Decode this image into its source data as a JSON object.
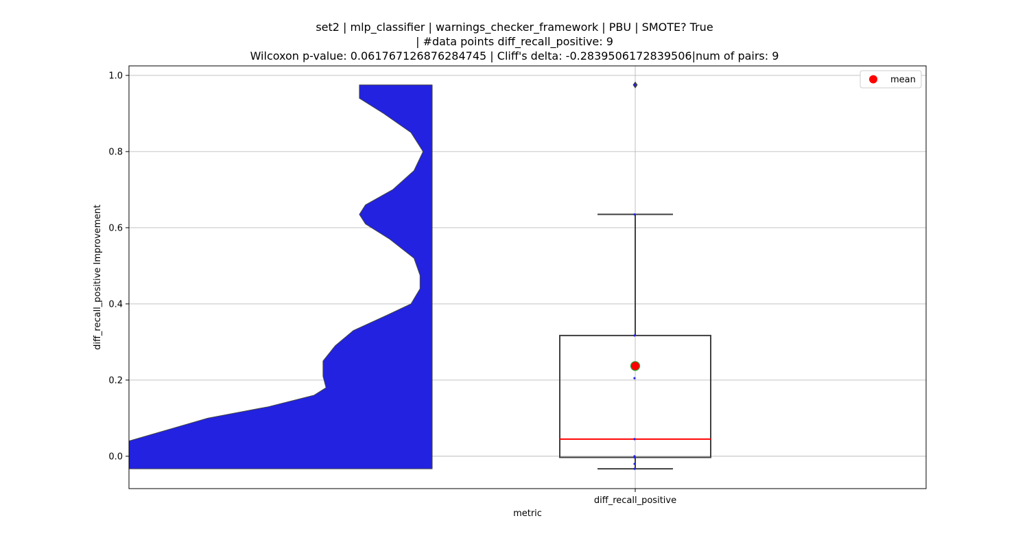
{
  "chart_data": {
    "type": "violin+box",
    "title_lines": [
      "set2 | mlp_classifier | warnings_checker_framework | PBU | SMOTE? True",
      "| #data points diff_recall_positive: 9",
      "Wilcoxon p-value: 0.061767126876284745 | Cliff's delta: -0.2839506172839506|num of pairs: 9"
    ],
    "xlabel": "metric",
    "ylabel": "diff_recall_positive Improvement",
    "category": "diff_recall_positive",
    "ylim": [
      -0.085,
      1.025
    ],
    "yticks": [
      0.0,
      0.2,
      0.4,
      0.6,
      0.8,
      1.0
    ],
    "ytick_labels": [
      "0.0",
      "0.2",
      "0.4",
      "0.6",
      "0.8",
      "1.0"
    ],
    "grid": true,
    "legend": {
      "position": "top-right",
      "entries": [
        {
          "label": "mean",
          "color": "#ff0000"
        }
      ]
    },
    "violin": {
      "color": "#2222e0",
      "ymin": -0.033,
      "ymax": 0.975,
      "density_profile": [
        [
          -0.033,
          1.0
        ],
        [
          0.04,
          1.0
        ],
        [
          0.07,
          0.87
        ],
        [
          0.1,
          0.74
        ],
        [
          0.13,
          0.54
        ],
        [
          0.16,
          0.39
        ],
        [
          0.18,
          0.35
        ],
        [
          0.21,
          0.36
        ],
        [
          0.25,
          0.36
        ],
        [
          0.29,
          0.32
        ],
        [
          0.33,
          0.26
        ],
        [
          0.37,
          0.15
        ],
        [
          0.4,
          0.07
        ],
        [
          0.44,
          0.04
        ],
        [
          0.475,
          0.04
        ],
        [
          0.52,
          0.06
        ],
        [
          0.57,
          0.14
        ],
        [
          0.61,
          0.22
        ],
        [
          0.635,
          0.24
        ],
        [
          0.66,
          0.22
        ],
        [
          0.7,
          0.13
        ],
        [
          0.75,
          0.06
        ],
        [
          0.8,
          0.03
        ],
        [
          0.85,
          0.07
        ],
        [
          0.9,
          0.16
        ],
        [
          0.94,
          0.24
        ],
        [
          0.975,
          0.24
        ]
      ]
    },
    "box": {
      "q1": -0.003,
      "median": 0.045,
      "q3": 0.317,
      "whisker_low": -0.033,
      "whisker_high": 0.635,
      "outliers": [
        0.975
      ],
      "mean": 0.237,
      "median_color": "#ff0000",
      "mean_color": "#ff0000",
      "mean_edge_color": "#2ca02c"
    },
    "points": [
      -0.033,
      -0.02,
      -0.003,
      0.0,
      0.045,
      0.205,
      0.317,
      0.635,
      0.975
    ]
  }
}
